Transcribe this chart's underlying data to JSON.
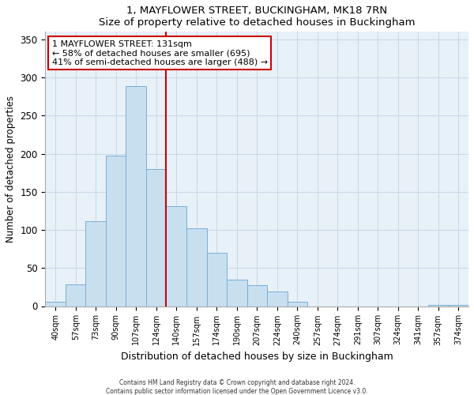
{
  "title": "1, MAYFLOWER STREET, BUCKINGHAM, MK18 7RN",
  "subtitle": "Size of property relative to detached houses in Buckingham",
  "xlabel": "Distribution of detached houses by size in Buckingham",
  "ylabel": "Number of detached properties",
  "bar_labels": [
    "40sqm",
    "57sqm",
    "73sqm",
    "90sqm",
    "107sqm",
    "124sqm",
    "140sqm",
    "157sqm",
    "174sqm",
    "190sqm",
    "207sqm",
    "224sqm",
    "240sqm",
    "257sqm",
    "274sqm",
    "291sqm",
    "307sqm",
    "324sqm",
    "341sqm",
    "357sqm",
    "374sqm"
  ],
  "bar_values": [
    6,
    28,
    111,
    198,
    289,
    180,
    131,
    102,
    70,
    35,
    27,
    19,
    6,
    0,
    0,
    0,
    0,
    0,
    0,
    2,
    2
  ],
  "bar_color": "#c8dff0",
  "bar_edge_color": "#7aafd4",
  "property_line_color": "#cc0000",
  "property_line_index": 5,
  "ylim": [
    0,
    360
  ],
  "yticks": [
    0,
    50,
    100,
    150,
    200,
    250,
    300,
    350
  ],
  "annotation_line1": "1 MAYFLOWER STREET: 131sqm",
  "annotation_line2": "← 58% of detached houses are smaller (695)",
  "annotation_line3": "41% of semi-detached houses are larger (488) →",
  "annotation_box_color": "#ffffff",
  "annotation_box_edge": "#cc0000",
  "grid_color": "#c8d8e8",
  "bg_color": "#e8f0f8",
  "footer1": "Contains HM Land Registry data © Crown copyright and database right 2024.",
  "footer2": "Contains public sector information licensed under the Open Government Licence v3.0."
}
